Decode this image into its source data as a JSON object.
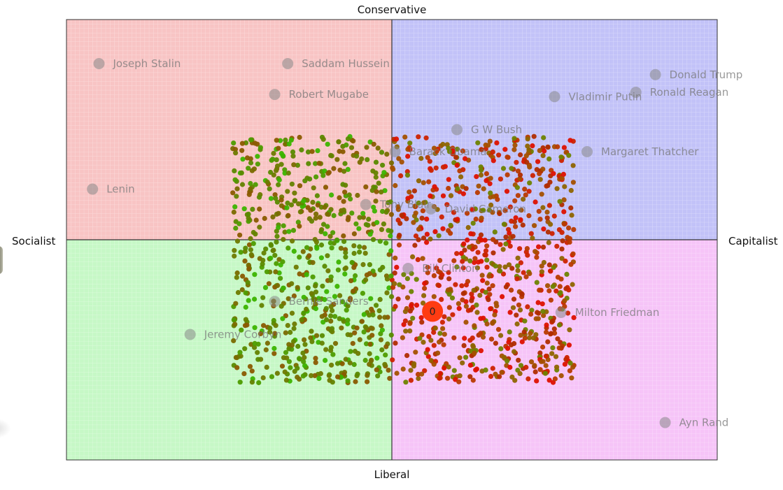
{
  "chart_data": {
    "type": "scatter",
    "quadrant_labels": {
      "top": "Conservative",
      "bottom": "Liberal",
      "left": "Socialist",
      "right": "Capitalist"
    },
    "xlim": [
      -10,
      10
    ],
    "ylim": [
      -10,
      10
    ],
    "quadrant_colors": {
      "top_left": "#f8c4c4",
      "top_right": "#c2c2f8",
      "bottom_left": "#c6f8c6",
      "bottom_right": "#f6c4f8"
    },
    "grid": true,
    "figures": [
      {
        "name": "Joseph Stalin",
        "x": -9.0,
        "y": 8.0
      },
      {
        "name": "Saddam Hussein",
        "x": -3.2,
        "y": 8.0
      },
      {
        "name": "Robert Mugabe",
        "x": -3.6,
        "y": 6.6
      },
      {
        "name": "Donald Trump",
        "x": 8.1,
        "y": 7.5
      },
      {
        "name": "Ronald Reagan",
        "x": 7.5,
        "y": 6.7
      },
      {
        "name": "Vladimir Putin",
        "x": 5.0,
        "y": 6.5
      },
      {
        "name": "G W Bush",
        "x": 2.0,
        "y": 5.0
      },
      {
        "name": "Barack Obama",
        "x": 0.1,
        "y": 4.0
      },
      {
        "name": "Margaret Thatcher",
        "x": 6.0,
        "y": 4.0
      },
      {
        "name": "Lenin",
        "x": -9.2,
        "y": 2.3
      },
      {
        "name": "Tony Blair",
        "x": -0.8,
        "y": 1.6
      },
      {
        "name": "David Cameron",
        "x": 1.2,
        "y": 1.4
      },
      {
        "name": "Bill Clinton",
        "x": 0.5,
        "y": -1.3
      },
      {
        "name": "Bernie Sanders",
        "x": -3.6,
        "y": -2.8
      },
      {
        "name": "Milton Friedman",
        "x": 5.2,
        "y": -3.3
      },
      {
        "name": "Jeremy Corbyn",
        "x": -6.2,
        "y": -4.3
      },
      {
        "name": "Ayn Rand",
        "x": 8.4,
        "y": -8.3
      }
    ],
    "cloud": {
      "x_range": [
        -4.9,
        5.6
      ],
      "y_range": [
        -6.5,
        4.7
      ],
      "colors_left": [
        "#5a8a00",
        "#6e7a00",
        "#7a6a00",
        "#8a5a00",
        "#648200",
        "#3cb400",
        "#4e9c00"
      ],
      "colors_right": [
        "#cc2200",
        "#b83a00",
        "#a45000",
        "#8e6400",
        "#dd1100",
        "#6e8200",
        "#b02c00"
      ]
    },
    "marker": {
      "label": "0",
      "x": 1.25,
      "y": -3.25,
      "color": "#ff3b12"
    }
  }
}
